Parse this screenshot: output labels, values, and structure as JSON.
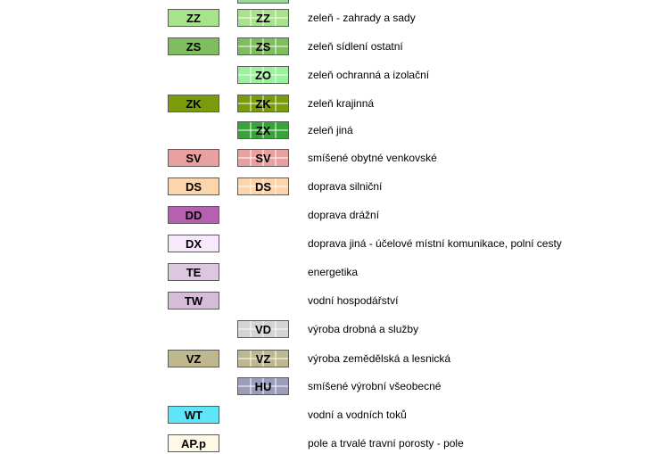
{
  "legend": {
    "rows": [
      {
        "solid": "ZZ",
        "hatched": "ZZ",
        "label": "zeleň - zahrady a sady"
      },
      {
        "solid": "ZS",
        "hatched": "ZS",
        "label": "zeleň sídlení ostatní"
      },
      {
        "solid": null,
        "hatched": "ZO",
        "label": "zeleň ochranná a izolační"
      },
      {
        "solid": "ZK",
        "hatched": "ZK",
        "label": "zeleň krajinná"
      },
      {
        "solid": null,
        "hatched": "ZX",
        "label": "zeleň jiná"
      },
      {
        "solid": "SV",
        "hatched": "SV",
        "label": "smíšené obytné venkovské"
      },
      {
        "solid": "DS",
        "hatched": "DS",
        "label": "doprava silniční"
      },
      {
        "solid": "DD",
        "hatched": null,
        "label": "doprava drážní"
      },
      {
        "solid": "DX",
        "hatched": null,
        "label": "doprava jiná - účelové místní komunikace, polní cesty"
      },
      {
        "solid": "TE",
        "hatched": null,
        "label": "energetika"
      },
      {
        "solid": "TW",
        "hatched": null,
        "label": "vodní hospodářství"
      },
      {
        "solid": null,
        "hatched": "VD",
        "label": "výroba drobná a služby"
      },
      {
        "solid": "VZ",
        "hatched": "VZ",
        "label": "výroba zemědělská a lesnická"
      },
      {
        "solid": null,
        "hatched": "HU",
        "label": "smíšené výrobní všeobecné"
      },
      {
        "solid": "WT",
        "hatched": null,
        "label": "vodní a vodních toků"
      },
      {
        "solid": "AP.p",
        "hatched": null,
        "label": "pole a trvalé travní porosty - pole"
      }
    ]
  },
  "colors": {
    "ZZ": "#a6e38a",
    "ZS": "#7dbd5e",
    "ZO": "#9cf29c",
    "ZK": "#7a9c0a",
    "ZX": "#36a436",
    "SV": "#e8a0a0",
    "DS": "#fcd6aa",
    "DD": "#b660b0",
    "DX": "#f7e8fb",
    "TE": "#dcc6e0",
    "TW": "#d6bcd8",
    "VD": "#d4d4d4",
    "VZ": "#bfb88f",
    "HU": "#9c9cbc",
    "WT": "#5ee6f8",
    "AP.p": "#fff8e6"
  }
}
